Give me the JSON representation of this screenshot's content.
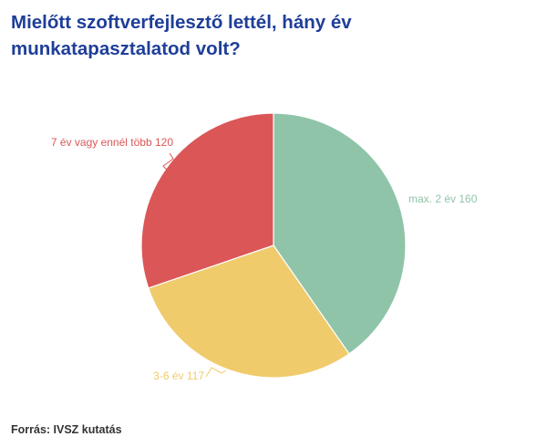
{
  "chart_data": {
    "type": "pie",
    "title": "Mielőtt szoftverfejlesztő lettél, hány év munkatapasztalatod volt?",
    "slices": [
      {
        "label": "max. 2 év",
        "value": 160,
        "color": "#8fc4a9"
      },
      {
        "label": "3-6 év",
        "value": 117,
        "color": "#efcb6c"
      },
      {
        "label": "7 év vagy ennél több",
        "value": 120,
        "color": "#db5657"
      }
    ],
    "data_labels": [
      "max. 2 év 160",
      "3-6 év 117",
      "7 év vagy ennél több 120"
    ]
  },
  "footer": {
    "source": "Forrás: IVSZ kutatás"
  }
}
